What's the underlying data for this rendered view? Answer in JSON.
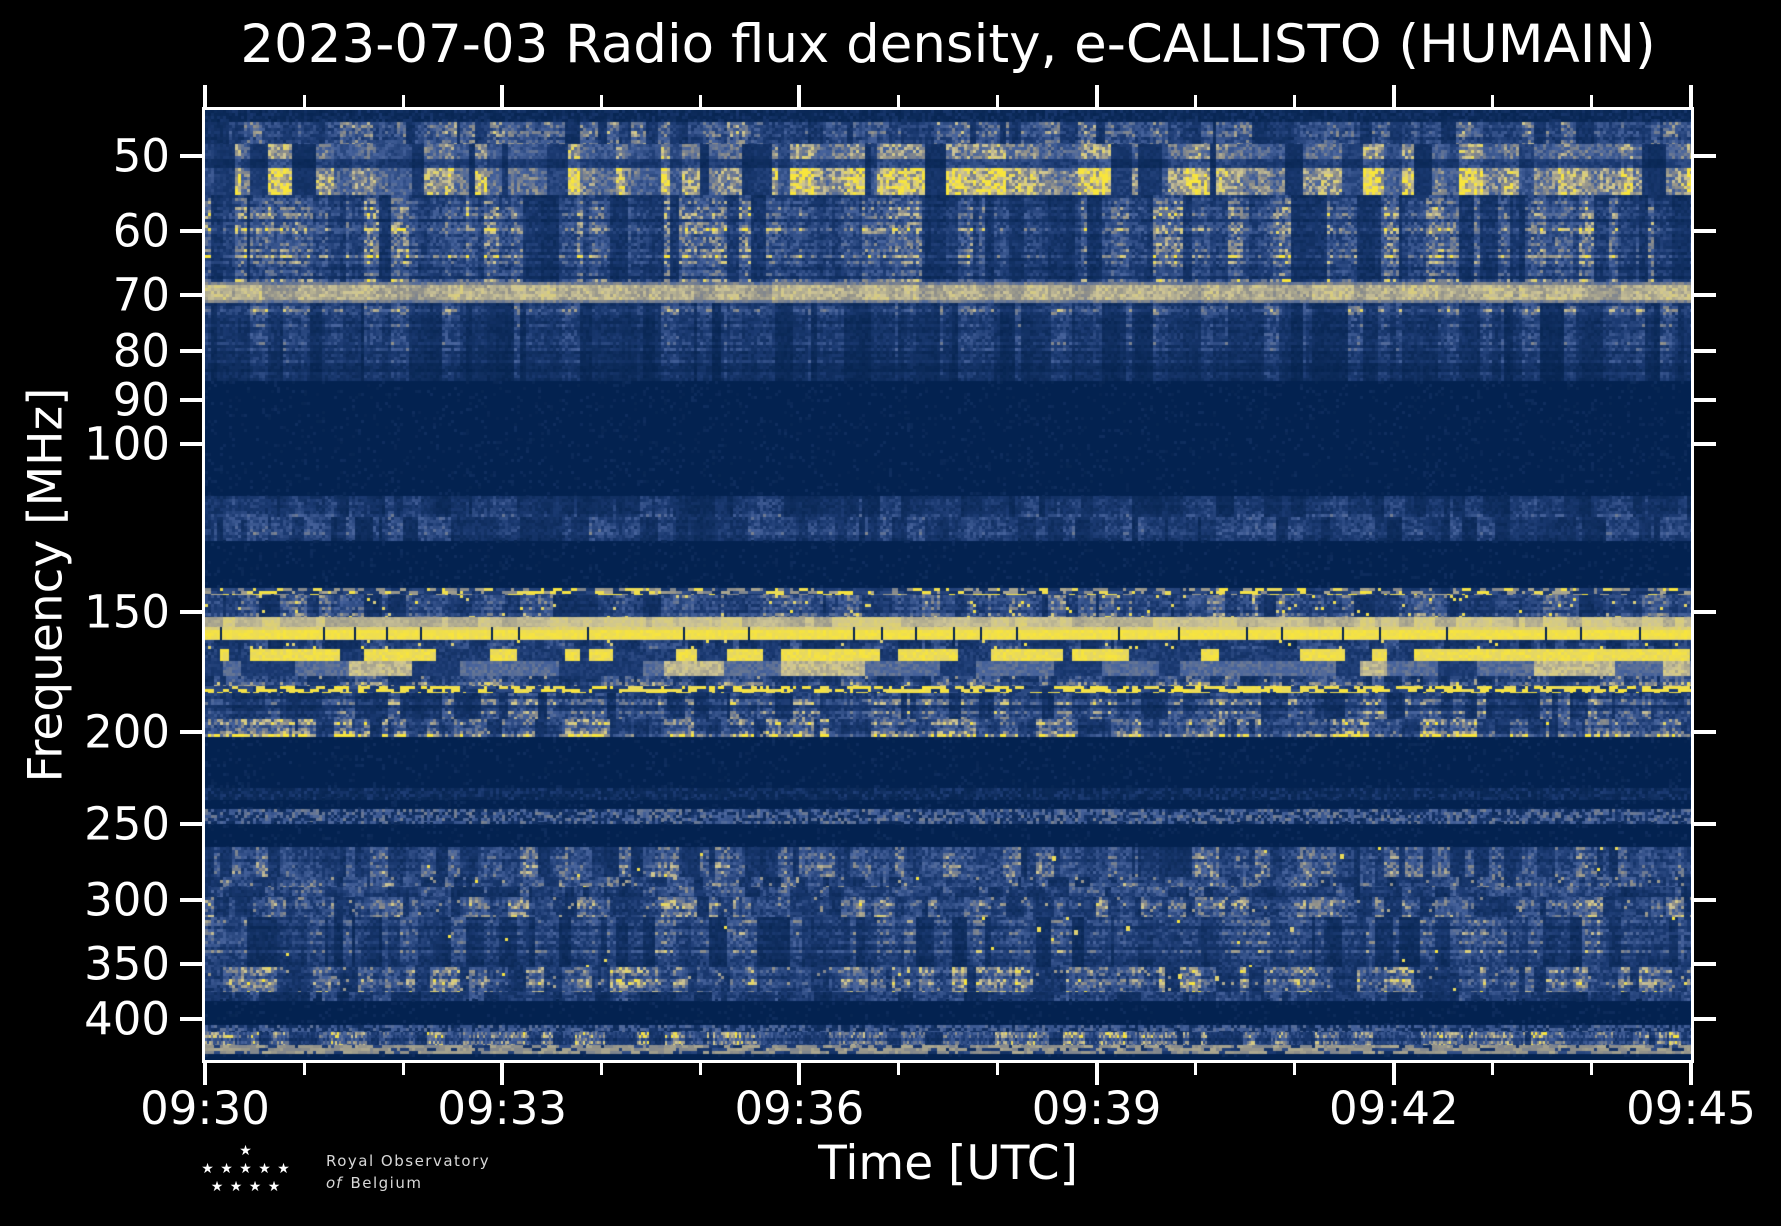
{
  "chart_data": {
    "type": "heatmap",
    "title": "2023-07-03 Radio flux density, e-CALLISTO (HUMAIN)",
    "xlabel": "Time [UTC]",
    "ylabel": "Frequency [MHz]",
    "x_range": [
      "09:30",
      "09:45"
    ],
    "x_tick_labels": [
      "09:30",
      "09:33",
      "09:36",
      "09:39",
      "09:42",
      "09:45"
    ],
    "x_minor_tick_minutes": 1,
    "x_major_tick_minutes": 3,
    "y_scale": "log",
    "y_range_mhz": [
      44.8,
      441
    ],
    "y_ticks": [
      50,
      60,
      70,
      80,
      90,
      100,
      150,
      200,
      250,
      300,
      350,
      400
    ],
    "grid": false,
    "legend": "none",
    "seed": 7,
    "bands": [
      {
        "f": [
          44.8,
          46.1
        ],
        "type": "faint",
        "level": 0.18
      },
      {
        "f": [
          46.1,
          48.6
        ],
        "type": "noise",
        "level": 0.5
      },
      {
        "f": [
          48.6,
          55.0
        ],
        "type": "streaks",
        "level": 0.8
      },
      {
        "f": [
          55.0,
          67.8
        ],
        "type": "noise",
        "level": 0.55,
        "striped": 1
      },
      {
        "f": [
          67.8,
          71.3
        ],
        "type": "tanline",
        "level": 0.78
      },
      {
        "f": [
          71.3,
          86.1
        ],
        "type": "noise",
        "level": 0.5,
        "striped": 1,
        "fade": 1
      },
      {
        "f": [
          86.1,
          113.5
        ],
        "type": "quiet",
        "level": 0.0
      },
      {
        "f": [
          113.5,
          119.3
        ],
        "type": "noise",
        "level": 0.38
      },
      {
        "f": [
          119.3,
          126.0
        ],
        "type": "yellowblobs",
        "level": 0.4
      },
      {
        "f": [
          126.0,
          141.5
        ],
        "type": "quiet",
        "level": 0.0
      },
      {
        "f": [
          141.5,
          143.9
        ],
        "type": "dashrow",
        "level": 0.6,
        "bright": "mix",
        "density": 0.45
      },
      {
        "f": [
          143.9,
          151.8
        ],
        "type": "noise",
        "level": 0.5,
        "ydash": 1
      },
      {
        "f": [
          151.8,
          155.6
        ],
        "type": "cream",
        "level": 0.8
      },
      {
        "f": [
          155.6,
          160.3
        ],
        "type": "yellowsolid",
        "level": 1.0
      },
      {
        "f": [
          160.3,
          164.1
        ],
        "type": "noise",
        "level": 0.45,
        "ydash": 1
      },
      {
        "f": [
          164.1,
          168.7
        ],
        "type": "yellowbroken",
        "level": 0.95
      },
      {
        "f": [
          168.7,
          175.1
        ],
        "type": "paleblocks",
        "level": 0.7
      },
      {
        "f": [
          175.1,
          179.3
        ],
        "type": "noise",
        "level": 0.55,
        "tanspeck": 1
      },
      {
        "f": [
          179.3,
          182.2
        ],
        "type": "dashrow",
        "level": 0.8,
        "bright": "yellow",
        "density": 0.55
      },
      {
        "f": [
          182.2,
          194.2
        ],
        "type": "noise",
        "level": 0.5,
        "striped": 1
      },
      {
        "f": [
          194.2,
          202.5
        ],
        "type": "noise",
        "level": 0.62,
        "tanrow": 1
      },
      {
        "f": [
          202.5,
          228.9
        ],
        "type": "quiet",
        "level": 0.0
      },
      {
        "f": [
          228.9,
          234.5
        ],
        "type": "faint",
        "level": 0.22
      },
      {
        "f": [
          234.5,
          241.3
        ],
        "type": "quiet",
        "level": 0.0
      },
      {
        "f": [
          241.3,
          248.9
        ],
        "type": "thinstrip",
        "level": 0.55
      },
      {
        "f": [
          248.9,
          264.1
        ],
        "type": "quiet",
        "level": 0.0
      },
      {
        "f": [
          264.1,
          283.9
        ],
        "type": "noise",
        "level": 0.52,
        "speck": 1
      },
      {
        "f": [
          283.9,
          290.9
        ],
        "type": "noise",
        "level": 0.58,
        "tanspeck": 1,
        "speck": 1
      },
      {
        "f": [
          290.9,
          298.0
        ],
        "type": "noise",
        "level": 0.45
      },
      {
        "f": [
          298.0,
          312.8
        ],
        "type": "noise",
        "level": 0.58,
        "tanspeck": 1
      },
      {
        "f": [
          312.8,
          352.5
        ],
        "type": "noise",
        "level": 0.52,
        "striped": 1,
        "speck": 1
      },
      {
        "f": [
          352.5,
          374.4
        ],
        "type": "noise",
        "level": 0.58,
        "tanspeck": 1,
        "speck": 1
      },
      {
        "f": [
          374.4,
          380.7
        ],
        "type": "noise",
        "level": 0.42
      },
      {
        "f": [
          380.7,
          405.3
        ],
        "type": "quiet",
        "level": 0.0
      },
      {
        "f": [
          405.3,
          412.2
        ],
        "type": "thinstrip",
        "level": 0.5
      },
      {
        "f": [
          412.2,
          425.3
        ],
        "type": "noise",
        "level": 0.6,
        "dense": 1
      },
      {
        "f": [
          425.3,
          434.6
        ],
        "type": "dashrow",
        "level": 0.7,
        "bright": "tan",
        "density": 0.75
      },
      {
        "f": [
          434.6,
          437.6
        ],
        "type": "quiet",
        "level": 0.0
      }
    ],
    "speckles": [
      {
        "x": 0.57,
        "f": 271,
        "v": 0.95
      },
      {
        "x": 0.694,
        "f": 271,
        "v": 0.72
      },
      {
        "x": 0.764,
        "f": 270,
        "v": 0.95
      },
      {
        "x": 0.56,
        "f": 322,
        "v": 0.95
      },
      {
        "x": 0.585,
        "f": 324,
        "v": 0.9
      },
      {
        "x": 0.62,
        "f": 321,
        "v": 0.95
      },
      {
        "x": 0.655,
        "f": 360,
        "v": 0.95
      },
      {
        "x": 0.68,
        "f": 362,
        "v": 0.9
      },
      {
        "x": 0.73,
        "f": 322,
        "v": 0.88
      },
      {
        "x": 0.3,
        "f": 282,
        "v": 0.85
      },
      {
        "x": 0.315,
        "f": 284,
        "v": 0.8
      }
    ]
  },
  "palette": {
    "background": "#000000",
    "text": "#ffffff",
    "spine": "#ffffff",
    "quiet_navy": "#032250",
    "ramp": [
      [
        0.0,
        "#02204a"
      ],
      [
        0.3,
        "#1b3a72"
      ],
      [
        0.55,
        "#47639c"
      ],
      [
        0.72,
        "#8f8f8a"
      ],
      [
        0.84,
        "#cdc496"
      ],
      [
        1.0,
        "#f8e53c"
      ]
    ]
  },
  "logo": {
    "line1": "Royal Observatory",
    "line2_italic": "of",
    "line2_rest": "Belgium",
    "star_rows": [
      1,
      5,
      4
    ],
    "star_glyph": "★"
  }
}
